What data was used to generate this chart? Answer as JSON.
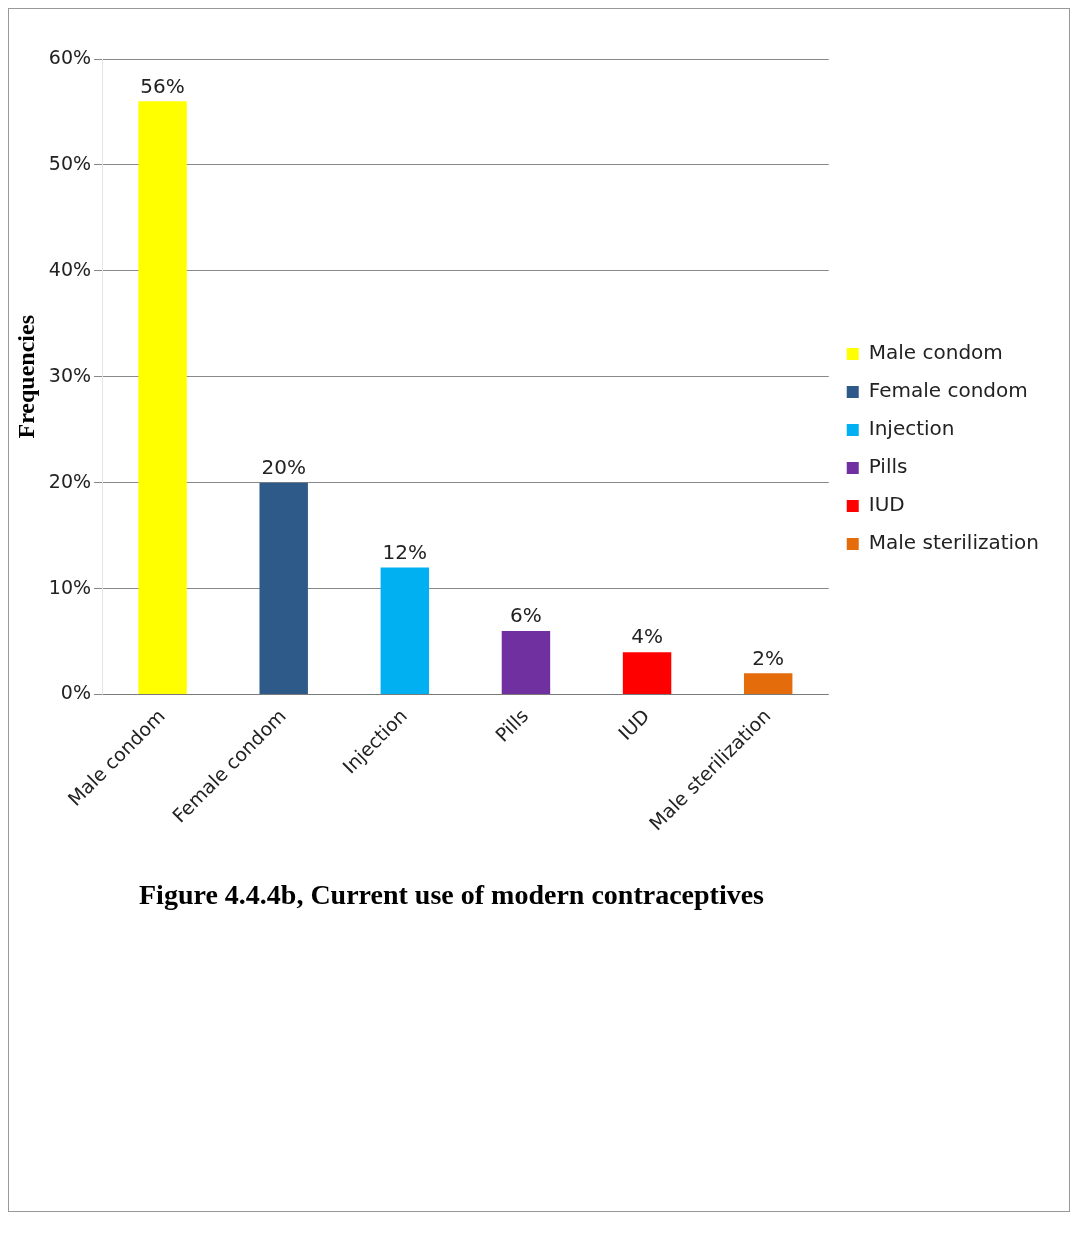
{
  "chart_data": {
    "type": "bar",
    "title": "Figure 4.4.4b, Current use of modern contraceptives",
    "ylabel": "Frequencies",
    "categories": [
      "Male condom",
      "Female condom",
      "Injection",
      "Pills",
      "IUD",
      "Male sterilization"
    ],
    "series": [
      {
        "name": "Male condom",
        "color": "#ffff00",
        "values": [
          56,
          null,
          null,
          null,
          null,
          null
        ],
        "value_labels": [
          "56%",
          null,
          null,
          null,
          null,
          null
        ]
      },
      {
        "name": "Female condom",
        "color": "#2e5a8a",
        "values": [
          null,
          20,
          null,
          null,
          null,
          null
        ],
        "value_labels": [
          null,
          "20%",
          null,
          null,
          null,
          null
        ]
      },
      {
        "name": "Injection",
        "color": "#00b0f0",
        "values": [
          null,
          null,
          12,
          null,
          null,
          null
        ],
        "value_labels": [
          null,
          null,
          "12%",
          null,
          null,
          null
        ]
      },
      {
        "name": "Pills",
        "color": "#7030a0",
        "values": [
          null,
          null,
          null,
          6,
          null,
          null
        ],
        "value_labels": [
          null,
          null,
          null,
          "6%",
          null,
          null
        ]
      },
      {
        "name": "IUD",
        "color": "#ff0000",
        "values": [
          null,
          null,
          null,
          null,
          4,
          null
        ],
        "value_labels": [
          null,
          null,
          null,
          null,
          "4%",
          null
        ]
      },
      {
        "name": "Male sterilization",
        "color": "#e46c0a",
        "values": [
          null,
          null,
          null,
          null,
          null,
          2
        ],
        "value_labels": [
          null,
          null,
          null,
          null,
          null,
          "2%"
        ]
      }
    ],
    "ylim": [
      0,
      60
    ],
    "yticks": [
      {
        "value": 0,
        "label": "0%"
      },
      {
        "value": 10,
        "label": "10%"
      },
      {
        "value": 20,
        "label": "20%"
      },
      {
        "value": 30,
        "label": "30%"
      },
      {
        "value": 40,
        "label": "40%"
      },
      {
        "value": 50,
        "label": "50%"
      },
      {
        "value": 60,
        "label": "60%"
      }
    ],
    "grid": "y",
    "legend": "right"
  }
}
